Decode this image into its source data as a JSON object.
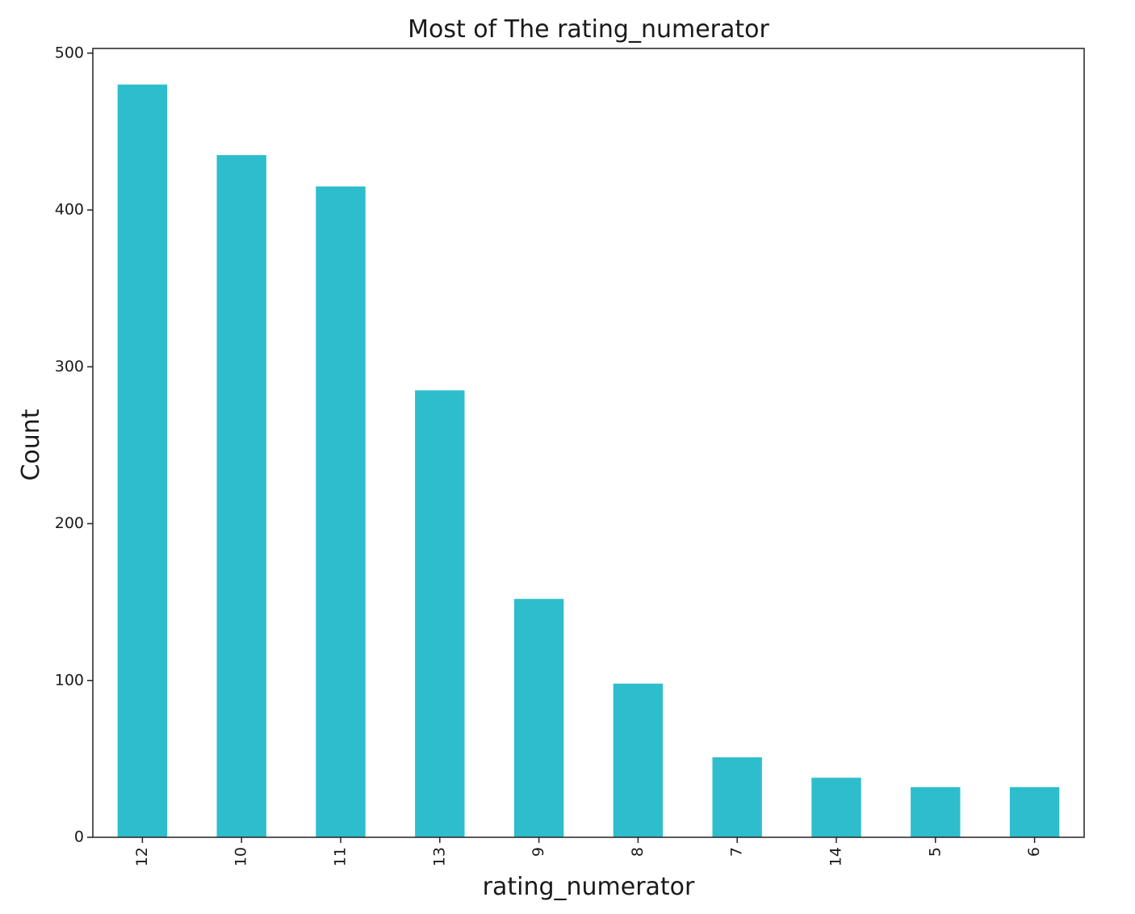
{
  "chart_data": {
    "type": "bar",
    "title": "Most of The rating_numerator",
    "xlabel": "rating_numerator",
    "ylabel": "Count",
    "categories": [
      "12",
      "10",
      "11",
      "13",
      "9",
      "8",
      "7",
      "14",
      "5",
      "6"
    ],
    "values": [
      480,
      435,
      415,
      285,
      152,
      98,
      51,
      38,
      32,
      32
    ],
    "ylim": [
      0,
      503
    ],
    "yticks": [
      0,
      100,
      200,
      300,
      400,
      500
    ],
    "grid": false,
    "legend": "none",
    "bar_color": "#2ebdcc"
  }
}
